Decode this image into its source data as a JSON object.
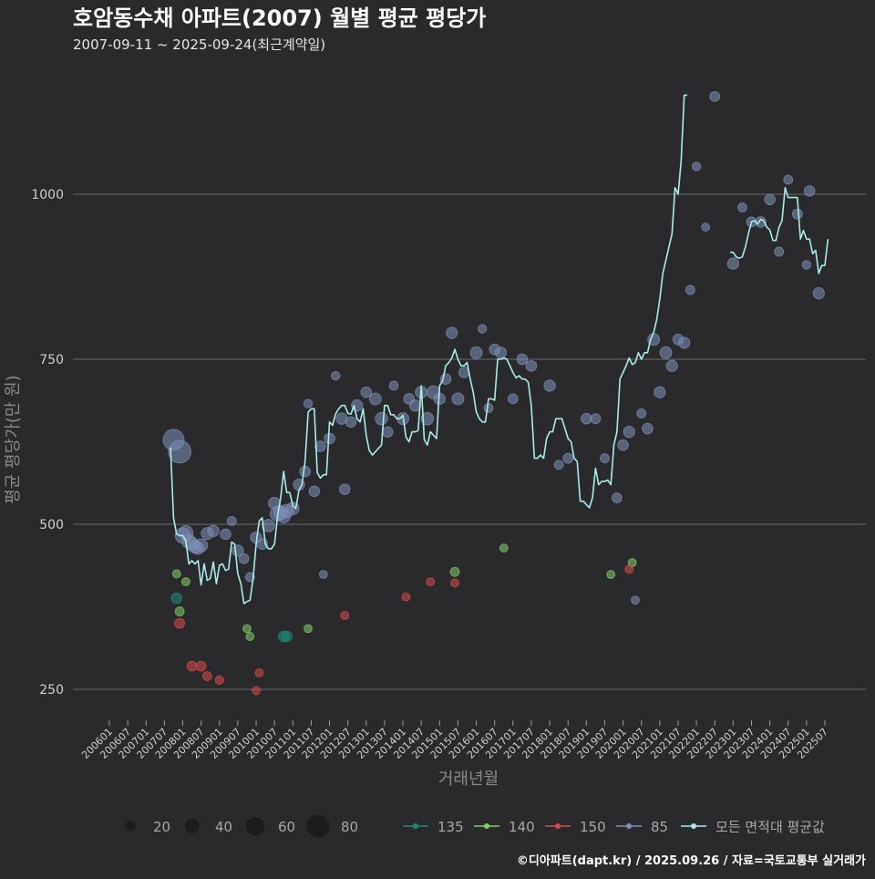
{
  "title": "호암동수채 아파트(2007) 월별 평균 평당가",
  "subtitle": "2007-09-11 ~ 2025-09-24(최근계약일)",
  "caption": "©디아파트(dapt.kr) / 2025.09.26 / 자료=국토교통부 실거래가",
  "colors": {
    "background": "#2a2a2c",
    "grid": "#6b6b6b",
    "line": "#a8ecea",
    "s135": "#1e8a7e",
    "s140": "#7fd06a",
    "s150": "#d84a4a",
    "s85": "#7e8fb8"
  },
  "chart_data": {
    "type": "scatter",
    "title": "호암동수채 아파트(2007) 월별 평균 평당가",
    "subtitle": "2007-09-11 ~ 2025-09-24(최근계약일)",
    "xlabel": "거래년월",
    "ylabel": "평균 평당가(만 원)",
    "x_axis": "month",
    "x_range": [
      "2006-01",
      "2025-07"
    ],
    "ylim": [
      200,
      1180
    ],
    "y_ticks": [
      250,
      500,
      750,
      1000
    ],
    "x_tick_labels": [
      "200601",
      "200607",
      "200701",
      "200707",
      "200801",
      "200807",
      "200901",
      "200907",
      "201001",
      "201007",
      "201101",
      "201107",
      "201201",
      "201207",
      "201301",
      "201307",
      "201401",
      "201407",
      "201501",
      "201507",
      "201601",
      "201607",
      "201701",
      "201707",
      "201801",
      "201807",
      "201901",
      "201907",
      "202001",
      "202007",
      "202101",
      "202107",
      "202201",
      "202207",
      "202301",
      "202307",
      "202401",
      "202407",
      "202501",
      "202507"
    ],
    "grid": "horizontal",
    "legend_position": "bottom",
    "size_legend": {
      "label_values": [
        "20",
        "40",
        "60",
        "80"
      ],
      "values": [
        20,
        40,
        60,
        80
      ]
    },
    "series": [
      {
        "name": "135",
        "color": "#1e8a7e",
        "points": [
          {
            "x": "2007-11",
            "y": 388,
            "size": 10
          },
          {
            "x": "2010-10",
            "y": 330,
            "size": 10
          },
          {
            "x": "2010-11",
            "y": 330,
            "size": 10
          }
        ]
      },
      {
        "name": "140",
        "color": "#7fd06a",
        "points": [
          {
            "x": "2007-11",
            "y": 425,
            "size": 4
          },
          {
            "x": "2007-12",
            "y": 368,
            "size": 6
          },
          {
            "x": "2008-02",
            "y": 413,
            "size": 4
          },
          {
            "x": "2009-10",
            "y": 342,
            "size": 4
          },
          {
            "x": "2009-11",
            "y": 330,
            "size": 4
          },
          {
            "x": "2011-06",
            "y": 342,
            "size": 4
          },
          {
            "x": "2015-06",
            "y": 428,
            "size": 6
          },
          {
            "x": "2016-10",
            "y": 464,
            "size": 4
          },
          {
            "x": "2019-09",
            "y": 424,
            "size": 4
          },
          {
            "x": "2020-04",
            "y": 442,
            "size": 4
          }
        ]
      },
      {
        "name": "150",
        "color": "#d84a4a",
        "points": [
          {
            "x": "2007-12",
            "y": 350,
            "size": 8
          },
          {
            "x": "2008-04",
            "y": 285,
            "size": 8
          },
          {
            "x": "2008-07",
            "y": 285,
            "size": 8
          },
          {
            "x": "2008-09",
            "y": 270,
            "size": 6
          },
          {
            "x": "2009-01",
            "y": 264,
            "size": 5
          },
          {
            "x": "2010-01",
            "y": 248,
            "size": 4
          },
          {
            "x": "2010-02",
            "y": 275,
            "size": 4
          },
          {
            "x": "2012-06",
            "y": 362,
            "size": 4
          },
          {
            "x": "2014-02",
            "y": 390,
            "size": 4
          },
          {
            "x": "2014-10",
            "y": 413,
            "size": 4
          },
          {
            "x": "2015-06",
            "y": 411,
            "size": 4
          },
          {
            "x": "2020-03",
            "y": 432,
            "size": 4
          }
        ]
      },
      {
        "name": "85",
        "color": "#7e8fb8",
        "points": [
          {
            "x": "2007-10",
            "y": 628,
            "size": 62
          },
          {
            "x": "2007-12",
            "y": 610,
            "size": 75
          },
          {
            "x": "2008-01",
            "y": 483,
            "size": 28
          },
          {
            "x": "2008-02",
            "y": 487,
            "size": 24
          },
          {
            "x": "2008-03",
            "y": 474,
            "size": 22
          },
          {
            "x": "2008-04",
            "y": 470,
            "size": 20
          },
          {
            "x": "2008-05",
            "y": 466,
            "size": 18
          },
          {
            "x": "2008-06",
            "y": 464,
            "size": 16
          },
          {
            "x": "2008-07",
            "y": 468,
            "size": 18
          },
          {
            "x": "2008-09",
            "y": 486,
            "size": 14
          },
          {
            "x": "2008-11",
            "y": 490,
            "size": 12
          },
          {
            "x": "2009-03",
            "y": 485,
            "size": 10
          },
          {
            "x": "2009-05",
            "y": 505,
            "size": 6
          },
          {
            "x": "2009-07",
            "y": 460,
            "size": 12
          },
          {
            "x": "2009-09",
            "y": 448,
            "size": 8
          },
          {
            "x": "2009-11",
            "y": 420,
            "size": 6
          },
          {
            "x": "2010-01",
            "y": 480,
            "size": 12
          },
          {
            "x": "2010-03",
            "y": 470,
            "size": 10
          },
          {
            "x": "2010-05",
            "y": 498,
            "size": 16
          },
          {
            "x": "2010-07",
            "y": 532,
            "size": 14
          },
          {
            "x": "2010-08",
            "y": 516,
            "size": 26
          },
          {
            "x": "2010-09",
            "y": 518,
            "size": 22
          },
          {
            "x": "2010-10",
            "y": 512,
            "size": 18
          },
          {
            "x": "2010-11",
            "y": 520,
            "size": 20
          },
          {
            "x": "2011-01",
            "y": 524,
            "size": 16
          },
          {
            "x": "2011-03",
            "y": 560,
            "size": 12
          },
          {
            "x": "2011-05",
            "y": 580,
            "size": 10
          },
          {
            "x": "2011-06",
            "y": 683,
            "size": 5
          },
          {
            "x": "2011-08",
            "y": 550,
            "size": 10
          },
          {
            "x": "2011-10",
            "y": 618,
            "size": 10
          },
          {
            "x": "2011-11",
            "y": 424,
            "size": 4
          },
          {
            "x": "2012-01",
            "y": 630,
            "size": 10
          },
          {
            "x": "2012-03",
            "y": 725,
            "size": 5
          },
          {
            "x": "2012-05",
            "y": 660,
            "size": 12
          },
          {
            "x": "2012-06",
            "y": 553,
            "size": 10
          },
          {
            "x": "2012-08",
            "y": 655,
            "size": 10
          },
          {
            "x": "2012-10",
            "y": 680,
            "size": 12
          },
          {
            "x": "2013-01",
            "y": 700,
            "size": 10
          },
          {
            "x": "2013-04",
            "y": 690,
            "size": 14
          },
          {
            "x": "2013-06",
            "y": 660,
            "size": 16
          },
          {
            "x": "2013-08",
            "y": 640,
            "size": 10
          },
          {
            "x": "2013-10",
            "y": 710,
            "size": 6
          },
          {
            "x": "2014-01",
            "y": 660,
            "size": 14
          },
          {
            "x": "2014-03",
            "y": 690,
            "size": 10
          },
          {
            "x": "2014-05",
            "y": 680,
            "size": 12
          },
          {
            "x": "2014-07",
            "y": 700,
            "size": 14
          },
          {
            "x": "2014-09",
            "y": 660,
            "size": 16
          },
          {
            "x": "2014-11",
            "y": 700,
            "size": 18
          },
          {
            "x": "2015-01",
            "y": 690,
            "size": 12
          },
          {
            "x": "2015-03",
            "y": 720,
            "size": 10
          },
          {
            "x": "2015-05",
            "y": 790,
            "size": 12
          },
          {
            "x": "2015-07",
            "y": 690,
            "size": 14
          },
          {
            "x": "2015-09",
            "y": 730,
            "size": 10
          },
          {
            "x": "2016-01",
            "y": 760,
            "size": 14
          },
          {
            "x": "2016-03",
            "y": 796,
            "size": 5
          },
          {
            "x": "2016-05",
            "y": 676,
            "size": 6
          },
          {
            "x": "2016-07",
            "y": 765,
            "size": 10
          },
          {
            "x": "2016-09",
            "y": 760,
            "size": 12
          },
          {
            "x": "2017-01",
            "y": 690,
            "size": 8
          },
          {
            "x": "2017-04",
            "y": 750,
            "size": 10
          },
          {
            "x": "2017-07",
            "y": 740,
            "size": 10
          },
          {
            "x": "2018-01",
            "y": 710,
            "size": 12
          },
          {
            "x": "2018-04",
            "y": 590,
            "size": 6
          },
          {
            "x": "2018-07",
            "y": 600,
            "size": 8
          },
          {
            "x": "2019-01",
            "y": 660,
            "size": 10
          },
          {
            "x": "2019-04",
            "y": 660,
            "size": 8
          },
          {
            "x": "2019-07",
            "y": 600,
            "size": 6
          },
          {
            "x": "2019-11",
            "y": 540,
            "size": 8
          },
          {
            "x": "2020-01",
            "y": 620,
            "size": 10
          },
          {
            "x": "2020-03",
            "y": 640,
            "size": 12
          },
          {
            "x": "2020-05",
            "y": 385,
            "size": 4
          },
          {
            "x": "2020-07",
            "y": 668,
            "size": 6
          },
          {
            "x": "2020-09",
            "y": 645,
            "size": 10
          },
          {
            "x": "2020-11",
            "y": 780,
            "size": 14
          },
          {
            "x": "2021-01",
            "y": 700,
            "size": 12
          },
          {
            "x": "2021-03",
            "y": 760,
            "size": 14
          },
          {
            "x": "2021-05",
            "y": 740,
            "size": 12
          },
          {
            "x": "2021-07",
            "y": 780,
            "size": 10
          },
          {
            "x": "2021-09",
            "y": 775,
            "size": 12
          },
          {
            "x": "2021-11",
            "y": 855,
            "size": 6
          },
          {
            "x": "2022-01",
            "y": 1042,
            "size": 5
          },
          {
            "x": "2022-04",
            "y": 950,
            "size": 4
          },
          {
            "x": "2022-07",
            "y": 1148,
            "size": 8
          },
          {
            "x": "2023-01",
            "y": 895,
            "size": 12
          },
          {
            "x": "2023-04",
            "y": 980,
            "size": 6
          },
          {
            "x": "2023-07",
            "y": 958,
            "size": 8
          },
          {
            "x": "2023-10",
            "y": 958,
            "size": 10
          },
          {
            "x": "2024-01",
            "y": 992,
            "size": 10
          },
          {
            "x": "2024-04",
            "y": 913,
            "size": 6
          },
          {
            "x": "2024-07",
            "y": 1022,
            "size": 6
          },
          {
            "x": "2024-10",
            "y": 970,
            "size": 8
          },
          {
            "x": "2025-01",
            "y": 893,
            "size": 5
          },
          {
            "x": "2025-02",
            "y": 1005,
            "size": 10
          },
          {
            "x": "2025-05",
            "y": 850,
            "size": 12
          }
        ]
      }
    ],
    "line": {
      "name": "모든 면적대 평균값",
      "color": "#a8ecea",
      "segments": [
        {
          "start": "2007-09",
          "values": [
            616,
            510,
            485,
            483,
            483,
            475,
            440,
            445,
            440,
            445,
            408,
            440,
            415,
            418,
            443,
            410,
            438,
            440,
            430,
            432,
            473,
            470,
            425,
            410,
            380,
            383,
            385,
            418,
            470,
            505,
            510,
            470,
            463,
            463,
            470,
            512,
            540,
            580,
            548,
            548,
            528,
            524,
            552,
            560,
            595,
            670,
            675,
            675,
            578,
            570,
            575,
            575,
            655,
            650,
            667,
            675,
            680,
            680,
            668,
            667,
            680,
            660,
            655,
            675,
            635,
            612,
            605,
            610,
            615,
            620,
            680,
            680,
            666,
            666,
            660,
            660,
            665,
            632,
            625,
            640,
            640,
            642,
            710,
            628,
            620,
            640,
            635,
            630,
            710,
            718,
            740,
            745,
            752,
            765,
            750,
            740,
            740,
            745,
            720,
            700,
            670,
            660,
            655,
            655,
            690,
            690,
            688,
            750,
            750,
            752,
            750,
            740,
            730,
            722,
            725,
            720,
            720,
            715,
            680,
            600,
            600,
            605,
            600,
            630,
            640,
            640,
            660,
            660,
            660,
            645,
            630,
            625,
            600,
            595,
            535,
            535,
            530,
            525,
            540,
            585,
            560,
            565,
            565,
            567,
            560,
            620,
            640,
            720,
            730,
            740,
            752,
            742,
            745,
            760,
            750,
            760,
            760,
            780,
            790,
            810,
            840,
            880,
            900,
            920,
            940,
            1010,
            1000,
            1050,
            1150,
            1150
          ]
        },
        {
          "start": "2022-12",
          "values": [
            912,
            912,
            905,
            903,
            905,
            920,
            940,
            958,
            960,
            955,
            962,
            960,
            950,
            946,
            930,
            930,
            950,
            960,
            1010,
            995,
            995,
            995,
            995,
            932,
            945,
            932,
            932,
            910,
            915,
            880,
            892,
            892,
            932
          ]
        }
      ]
    },
    "legend": {
      "sizes": [
        "20",
        "40",
        "60",
        "80"
      ],
      "series": [
        "135",
        "140",
        "150",
        "85",
        "모든 면적대 평균값"
      ]
    }
  }
}
